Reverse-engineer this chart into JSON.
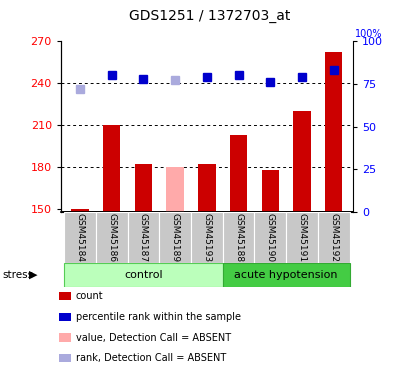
{
  "title": "GDS1251 / 1372703_at",
  "samples": [
    "GSM45184",
    "GSM45186",
    "GSM45187",
    "GSM45189",
    "GSM45193",
    "GSM45188",
    "GSM45190",
    "GSM45191",
    "GSM45192"
  ],
  "bar_values": [
    150,
    210,
    182,
    180,
    182,
    203,
    178,
    220,
    262
  ],
  "bar_absent": [
    false,
    false,
    false,
    true,
    false,
    false,
    false,
    false,
    false
  ],
  "rank_values": [
    72,
    80,
    78,
    77,
    79,
    80,
    76,
    79,
    83
  ],
  "rank_absent": [
    true,
    false,
    false,
    true,
    false,
    false,
    false,
    false,
    false
  ],
  "ylim_left": [
    148,
    270
  ],
  "ylim_right": [
    0,
    100
  ],
  "yticks_left": [
    150,
    180,
    210,
    240,
    270
  ],
  "yticks_right": [
    0,
    25,
    50,
    75,
    100
  ],
  "control_indices": [
    0,
    1,
    2,
    3,
    4
  ],
  "acute_indices": [
    5,
    6,
    7,
    8
  ],
  "bar_color_present": "#cc0000",
  "bar_color_absent": "#ffaaaa",
  "rank_color_present": "#0000cc",
  "rank_color_absent": "#aaaadd",
  "control_bg_light": "#ccffcc",
  "control_bg_dark": "#55dd55",
  "acute_bg": "#44dd44",
  "xlabel_bg": "#cccccc",
  "bar_width": 0.55,
  "rank_marker_size": 6,
  "control_label": "control",
  "acute_label": "acute hypotension",
  "stress_label": "stress"
}
